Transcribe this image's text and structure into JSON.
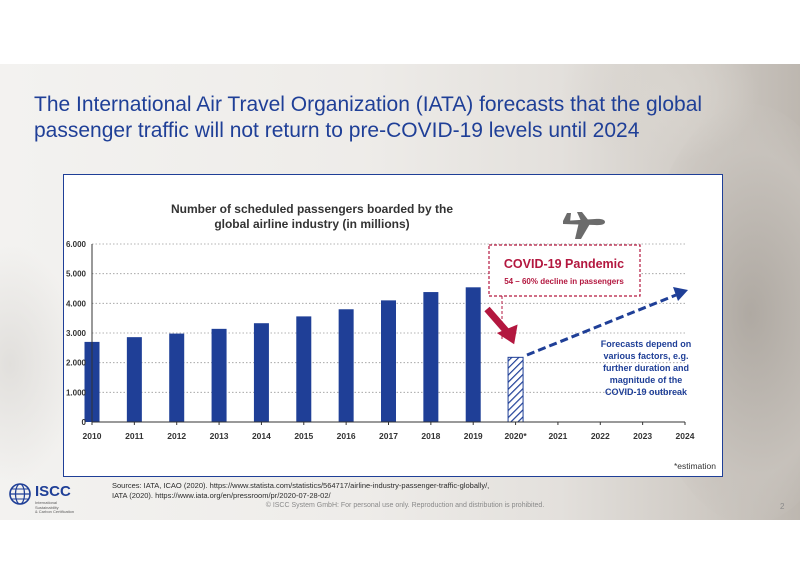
{
  "slide": {
    "title_line1": "The International Air Travel Organization (IATA) forecasts that the global",
    "title_line2": "passenger traffic will not return to pre-COVID-19 levels until 2024",
    "sources_line1": "Sources: IATA, ICAO (2020). https://www.statista.com/statistics/564717/airline-industry-passenger-traffic-globally/,",
    "sources_line2": "IATA (2020). https://www.iata.org/en/pressroom/pr/2020-07-28-02/",
    "copyright": "© ISCC System GmbH: For personal use only. Reproduction and distribution is prohibited.",
    "page_number": "2"
  },
  "logo": {
    "name": "ISCC",
    "sub_line1": "International Sustainability",
    "sub_line2": "& Carbon Certification"
  },
  "chart_data": {
    "type": "bar",
    "title_line1": "Number of scheduled passengers boarded by the",
    "title_line2": "global airline industry (in millions)",
    "categories": [
      "2010",
      "2011",
      "2012",
      "2013",
      "2014",
      "2015",
      "2016",
      "2017",
      "2018",
      "2019",
      "2020*",
      "2021",
      "2022",
      "2023",
      "2024"
    ],
    "series": [
      {
        "values": [
          2700,
          2860,
          2980,
          3140,
          3330,
          3560,
          3800,
          4100,
          4380,
          4540,
          2180,
          null,
          null,
          null,
          null
        ]
      }
    ],
    "estimated_categories": [
      "2020*"
    ],
    "ylim": [
      0,
      6000
    ],
    "yticks": [
      "0",
      "1.000",
      "2.000",
      "3.000",
      "4.000",
      "5.000",
      "6.000"
    ],
    "ytick_values": [
      0,
      1000,
      2000,
      3000,
      4000,
      5000,
      6000
    ],
    "grid": true,
    "bar_color": "#1f3f97",
    "accent_color": "#b3173f",
    "annotation_box": {
      "title": "COVID-19 Pandemic",
      "subtitle": "54 – 60% decline in passengers"
    },
    "forecast_note": {
      "line1": "Forecasts depend on",
      "line2": "various factors, e.g.",
      "line3": "further duration and",
      "line4": "magnitude of the",
      "line5": "COVID-19 outbreak"
    },
    "footnote": "*estimation",
    "icon": "airplane-icon"
  }
}
